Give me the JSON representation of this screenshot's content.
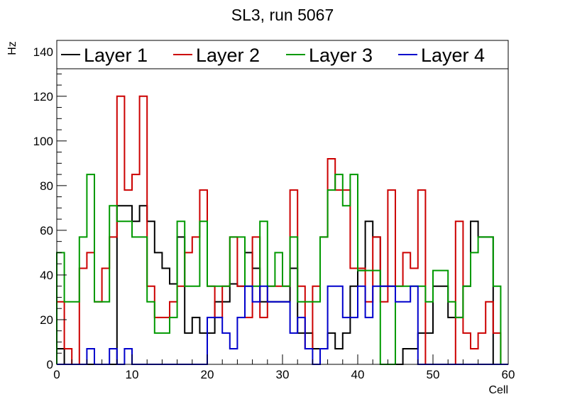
{
  "chart_data": {
    "type": "step",
    "title": "SL3, run 5067",
    "xlabel": "Cell",
    "ylabel": "Hz",
    "xlim": [
      0,
      60
    ],
    "ylim": [
      0,
      145
    ],
    "xticks": [
      0,
      10,
      20,
      30,
      40,
      50,
      60
    ],
    "yticks": [
      0,
      20,
      40,
      60,
      80,
      100,
      120,
      140
    ],
    "x_bins": [
      0,
      1,
      2,
      3,
      4,
      5,
      6,
      7,
      8,
      9,
      10,
      11,
      12,
      13,
      14,
      15,
      16,
      17,
      18,
      19,
      20,
      21,
      22,
      23,
      24,
      25,
      26,
      27,
      28,
      29,
      30,
      31,
      32,
      33,
      34,
      35,
      36,
      37,
      38,
      39,
      40,
      41,
      42,
      43,
      44,
      45,
      46,
      47,
      48,
      49,
      50,
      51,
      52,
      53,
      54,
      55,
      56,
      57,
      58,
      59
    ],
    "legend_position": "top",
    "series": [
      {
        "name": "Layer 1",
        "color": "#000000",
        "values": [
          7,
          0,
          0,
          0,
          0,
          0,
          0,
          0,
          71,
          71,
          64,
          71,
          64,
          50,
          43,
          36,
          57,
          14,
          21,
          14,
          14,
          28,
          28,
          36,
          35,
          50,
          43,
          28,
          28,
          28,
          28,
          43,
          14,
          14,
          7,
          7,
          14,
          7,
          14,
          35,
          42,
          64,
          57,
          35,
          35,
          0,
          7,
          7,
          14,
          14,
          35,
          35,
          21,
          21,
          35,
          64,
          57,
          57,
          0,
          0
        ]
      },
      {
        "name": "Layer 2",
        "color": "#cc0000",
        "values": [
          28,
          7,
          0,
          43,
          50,
          28,
          43,
          57,
          120,
          78,
          85,
          120,
          35,
          21,
          21,
          28,
          35,
          50,
          57,
          78,
          35,
          21,
          35,
          57,
          35,
          21,
          57,
          21,
          35,
          35,
          35,
          78,
          35,
          7,
          35,
          57,
          92,
          78,
          78,
          43,
          43,
          28,
          57,
          28,
          78,
          35,
          50,
          43,
          78,
          0,
          0,
          0,
          0,
          64,
          14,
          7,
          14,
          28,
          14,
          0
        ]
      },
      {
        "name": "Layer 3",
        "color": "#009900",
        "values": [
          50,
          28,
          28,
          57,
          85,
          28,
          28,
          71,
          64,
          64,
          57,
          57,
          28,
          14,
          14,
          21,
          64,
          35,
          35,
          64,
          35,
          35,
          35,
          57,
          57,
          35,
          35,
          64,
          35,
          50,
          35,
          57,
          28,
          28,
          28,
          57,
          78,
          85,
          71,
          85,
          42,
          42,
          42,
          0,
          0,
          35,
          35,
          35,
          35,
          28,
          42,
          42,
          28,
          21,
          35,
          50,
          57,
          57,
          35,
          0
        ]
      },
      {
        "name": "Layer 4",
        "color": "#0000cc",
        "values": [
          0,
          0,
          0,
          0,
          7,
          0,
          0,
          7,
          0,
          7,
          0,
          0,
          0,
          0,
          0,
          0,
          0,
          0,
          0,
          0,
          21,
          21,
          14,
          7,
          21,
          35,
          28,
          35,
          28,
          28,
          28,
          14,
          21,
          7,
          0,
          7,
          35,
          35,
          21,
          21,
          35,
          21,
          35,
          35,
          35,
          28,
          28,
          35,
          0,
          0,
          0,
          0,
          0,
          0,
          0,
          0,
          0,
          0,
          0,
          0
        ]
      }
    ]
  }
}
